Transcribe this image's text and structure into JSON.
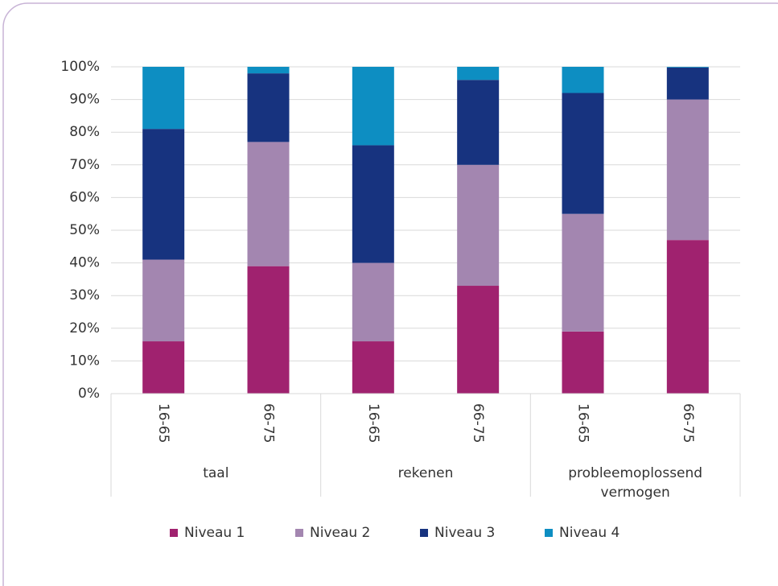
{
  "chart_data": {
    "type": "stacked_bar",
    "categories": [
      "16-65",
      "66-75",
      "16-65",
      "66-75",
      "16-65",
      "66-75"
    ],
    "groups": [
      "taal",
      "rekenen",
      "probleemoplossend vermogen"
    ],
    "series": [
      {
        "name": "Niveau 1",
        "color": "#a0226f",
        "values": [
          16,
          39,
          16,
          33,
          19,
          47
        ]
      },
      {
        "name": "Niveau 2",
        "color": "#a386b0",
        "values": [
          25,
          38,
          24,
          37,
          36,
          43
        ]
      },
      {
        "name": "Niveau 3",
        "color": "#17337f",
        "values": [
          40,
          21,
          36,
          26,
          37,
          9.8
        ]
      },
      {
        "name": "Niveau 4",
        "color": "#0d8ec2",
        "values": [
          19,
          2,
          24,
          4,
          8,
          0.2
        ]
      }
    ],
    "ylim": [
      0,
      100
    ],
    "yticks": [
      {
        "value": 0,
        "label": "0%"
      },
      {
        "value": 10,
        "label": "10%"
      },
      {
        "value": 20,
        "label": "20%"
      },
      {
        "value": 30,
        "label": "30%"
      },
      {
        "value": 40,
        "label": "40%"
      },
      {
        "value": 50,
        "label": "50%"
      },
      {
        "value": 60,
        "label": "60%"
      },
      {
        "value": 70,
        "label": "70%"
      },
      {
        "value": 80,
        "label": "80%"
      },
      {
        "value": 90,
        "label": "90%"
      },
      {
        "value": 100,
        "label": "100%"
      }
    ],
    "grid": true,
    "legend": "bottom"
  }
}
